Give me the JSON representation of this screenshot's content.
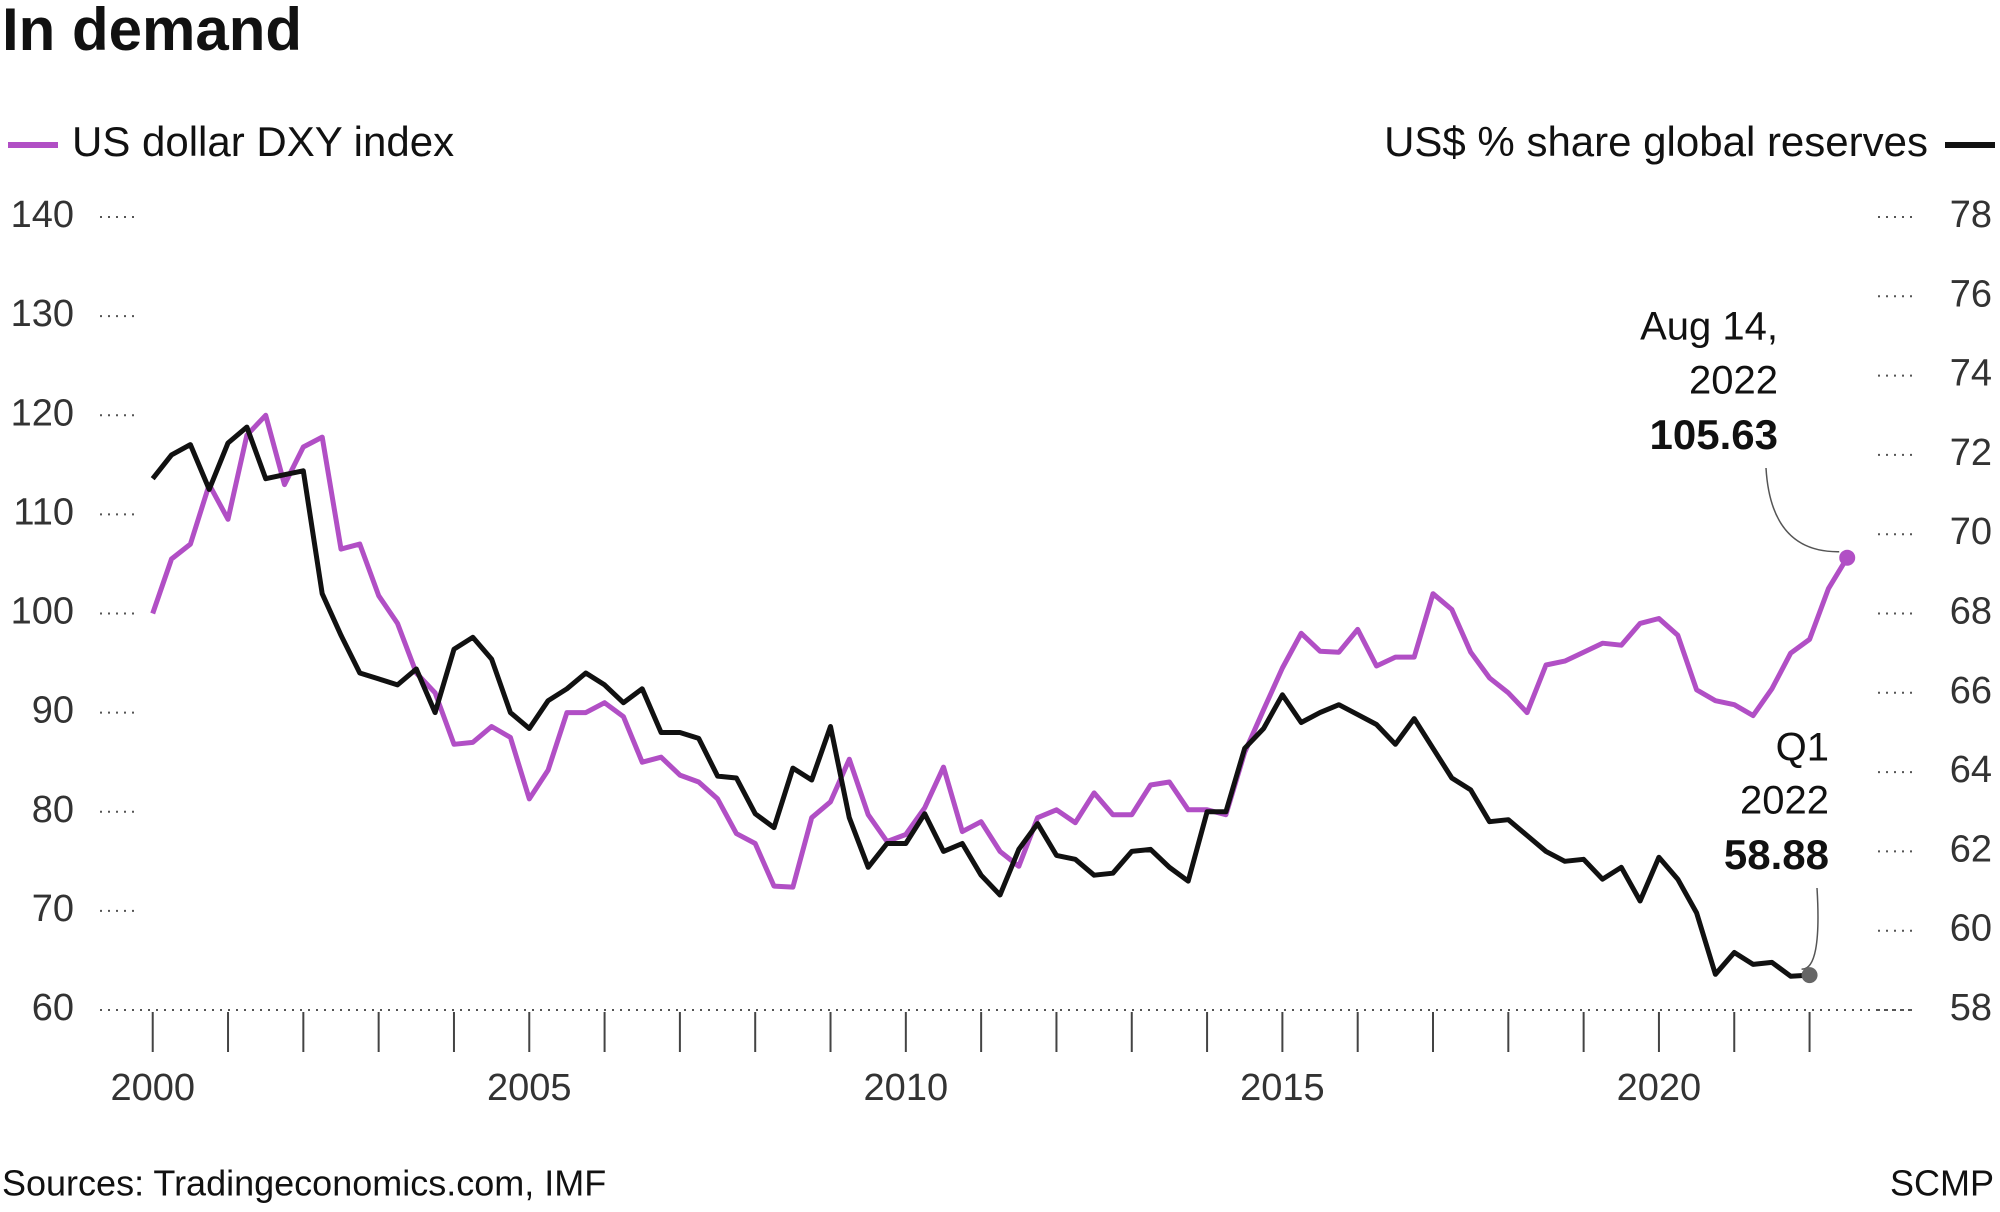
{
  "chart_data": {
    "type": "line",
    "title": "In demand",
    "source": "Sources: Tradingeconomics.com, IMF",
    "credit": "SCMP",
    "x": [
      2000,
      2000.25,
      2000.5,
      2000.75,
      2001,
      2001.25,
      2001.5,
      2001.75,
      2002,
      2002.25,
      2002.5,
      2002.75,
      2003,
      2003.25,
      2003.5,
      2003.75,
      2004,
      2004.25,
      2004.5,
      2004.75,
      2005,
      2005.25,
      2005.5,
      2005.75,
      2006,
      2006.25,
      2006.5,
      2006.75,
      2007,
      2007.25,
      2007.5,
      2007.75,
      2008,
      2008.25,
      2008.5,
      2008.75,
      2009,
      2009.25,
      2009.5,
      2009.75,
      2010,
      2010.25,
      2010.5,
      2010.75,
      2011,
      2011.25,
      2011.5,
      2011.75,
      2012,
      2012.25,
      2012.5,
      2012.75,
      2013,
      2013.25,
      2013.5,
      2013.75,
      2014,
      2014.25,
      2014.5,
      2014.75,
      2015,
      2015.25,
      2015.5,
      2015.75,
      2016,
      2016.25,
      2016.5,
      2016.75,
      2017,
      2017.25,
      2017.5,
      2017.75,
      2018,
      2018.25,
      2018.5,
      2018.75,
      2019,
      2019.25,
      2019.5,
      2019.75,
      2020,
      2020.25,
      2020.5,
      2020.75,
      2021,
      2021.25,
      2021.5,
      2021.75,
      2022,
      2022.25,
      2022.5
    ],
    "series": [
      {
        "name": "US dollar DXY index",
        "color": "#b14fc5",
        "axis": "y",
        "values": [
          100,
          105.5,
          107,
          113,
          109.5,
          118,
          120,
          113,
          116.8,
          117.8,
          106.5,
          107,
          101.8,
          99,
          94,
          92,
          86.8,
          87,
          88.6,
          87.5,
          81.3,
          84.2,
          90,
          90,
          91,
          89.6,
          85,
          85.5,
          83.7,
          83,
          81.3,
          77.8,
          76.8,
          72.5,
          72.4,
          79.4,
          81,
          85.3,
          79.7,
          77,
          77.7,
          80.4,
          84.5,
          78,
          79,
          76,
          74.5,
          79.4,
          80.2,
          78.9,
          81.9,
          79.7,
          79.7,
          82.7,
          83,
          80.2,
          80.2,
          79.7,
          86,
          90.3,
          94.5,
          98,
          96.2,
          96.1,
          98.4,
          94.7,
          95.6,
          95.6,
          102,
          100.4,
          96.1,
          93.5,
          92,
          90,
          94.8,
          95.2,
          96.1,
          97,
          96.8,
          99,
          99.5,
          97.8,
          92.3,
          91.2,
          90.8,
          89.7,
          92.4,
          96,
          97.4,
          102.5,
          105.63
        ]
      },
      {
        "name": "US$ % share global reserves",
        "color": "#111111",
        "axis": "y2",
        "values": [
          71.4,
          72.0,
          72.26,
          71.13,
          72.3,
          72.7,
          71.4,
          71.5,
          71.6,
          68.5,
          67.45,
          66.5,
          66.35,
          66.2,
          66.6,
          65.5,
          67.1,
          67.4,
          66.85,
          65.5,
          65.1,
          65.8,
          66.1,
          66.5,
          66.2,
          65.75,
          66.1,
          65.0,
          65.0,
          64.85,
          63.9,
          63.85,
          62.95,
          62.6,
          64.1,
          63.8,
          65.15,
          62.85,
          61.6,
          62.2,
          62.2,
          62.95,
          62.0,
          62.2,
          61.4,
          60.9,
          62.05,
          62.7,
          61.9,
          61.8,
          61.4,
          61.45,
          62.0,
          62.05,
          61.6,
          61.25,
          63.0,
          63.0,
          64.6,
          65.1,
          65.95,
          65.25,
          65.5,
          65.7,
          65.45,
          65.2,
          64.7,
          65.35,
          64.6,
          63.85,
          63.55,
          62.75,
          62.8,
          62.4,
          62.0,
          61.75,
          61.8,
          61.3,
          61.6,
          60.75,
          61.85,
          61.3,
          60.45,
          58.9,
          59.45,
          59.15,
          59.2,
          58.85,
          58.88,
          null,
          null
        ]
      }
    ],
    "xlim": [
      1999.3,
      2023.4
    ],
    "xticks": [
      2000,
      2005,
      2010,
      2015,
      2020
    ],
    "xticks_minor": [
      2000,
      2001,
      2002,
      2003,
      2004,
      2005,
      2006,
      2007,
      2008,
      2009,
      2010,
      2011,
      2012,
      2013,
      2014,
      2015,
      2016,
      2017,
      2018,
      2019,
      2020,
      2021,
      2022
    ],
    "ylim": [
      60,
      140
    ],
    "yticks": [
      60,
      70,
      80,
      90,
      100,
      110,
      120,
      130,
      140
    ],
    "y2lim": [
      58,
      78
    ],
    "y2ticks": [
      58,
      60,
      62,
      64,
      66,
      68,
      70,
      72,
      74,
      76,
      78
    ],
    "annotations": [
      {
        "lines": [
          "Aug 14,",
          "2022"
        ],
        "series": 0,
        "point": 90
      },
      {
        "lines": [
          "Q1",
          "2022"
        ],
        "series": 1,
        "point": 88
      }
    ]
  }
}
